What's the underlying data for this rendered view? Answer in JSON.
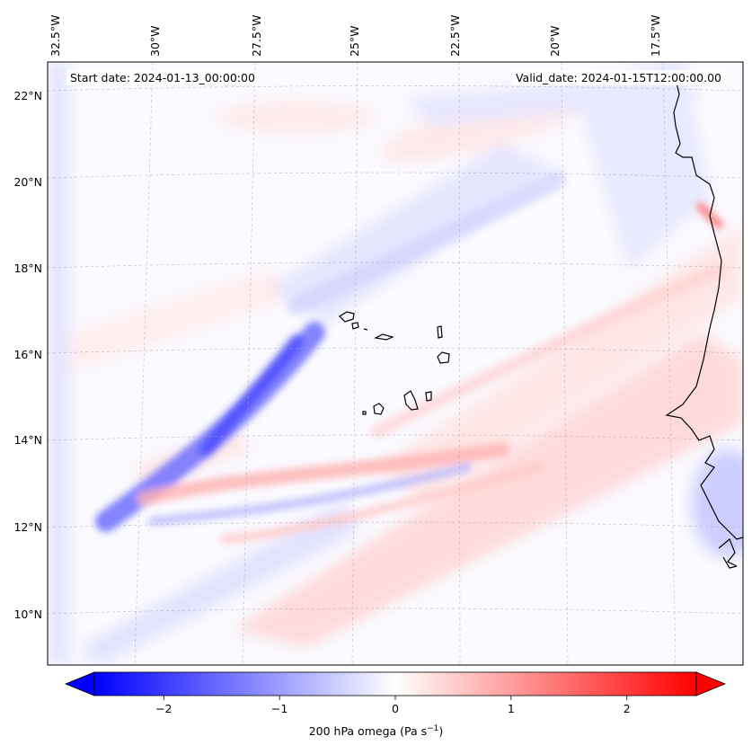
{
  "header": {
    "start_date": "Start date: 2024-01-13_00:00:00",
    "valid_date": "Valid_date: 2024-01-15T12:00:00.00"
  },
  "lon_labels": [
    "32.5°W",
    "30°W",
    "27.5°W",
    "25°W",
    "22.5°W",
    "20°W",
    "17.5°W"
  ],
  "lat_labels": [
    "22°N",
    "20°N",
    "18°N",
    "16°N",
    "14°N",
    "12°N",
    "10°N"
  ],
  "colorbar": {
    "ticks": [
      "−2",
      "−1",
      "0",
      "1",
      "2"
    ],
    "tick_values": [
      -2,
      -1,
      0,
      1,
      2
    ],
    "range": [
      -2.6,
      2.6
    ],
    "label_main": "200 hPa omega (Pa s",
    "label_sup": "−1",
    "label_end": ")",
    "colormap": "bwr",
    "color_low": "#0000ff",
    "color_mid": "#ffffff",
    "color_high": "#ff0000"
  }
}
